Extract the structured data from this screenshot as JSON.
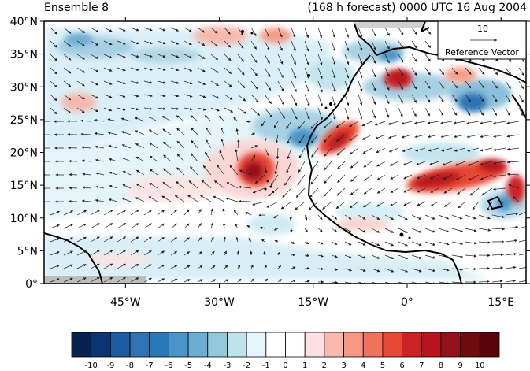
{
  "header": {
    "left_title": "Ensemble 8",
    "right_title": "(168 h forecast) 0000 UTC 16 Aug 2004"
  },
  "map": {
    "lat_labels": [
      "40°N",
      "35°N",
      "30°N",
      "25°N",
      "20°N",
      "15°N",
      "10°N",
      "5°N",
      "0°"
    ],
    "lon_labels": [
      "45°W",
      "30°W",
      "15°W",
      "0°",
      "15°E"
    ],
    "lon_range": [
      -58,
      19
    ],
    "lat_range": [
      0,
      40
    ],
    "reference_vector": {
      "value": "10",
      "label": "Reference Vector"
    }
  },
  "colorbar": {
    "labels": [
      "-10",
      "-9",
      "-8",
      "-7",
      "-6",
      "-5",
      "-4",
      "-3",
      "-2",
      "-1",
      "0",
      "1",
      "2",
      "3",
      "4",
      "5",
      "6",
      "7",
      "8",
      "9",
      "10"
    ],
    "colors": [
      "#08214f",
      "#0b3474",
      "#1b5ba1",
      "#2f73b5",
      "#2b78b8",
      "#4a95c7",
      "#6caed2",
      "#93c8db",
      "#bfe2ec",
      "#e4f4fb",
      "#ffffff",
      "#ffffff",
      "#fde0e2",
      "#f9b9ad",
      "#f59883",
      "#f0725c",
      "#e74734",
      "#cd2327",
      "#b6141e",
      "#92111a",
      "#6f0b0f",
      "#5a0308"
    ]
  }
}
